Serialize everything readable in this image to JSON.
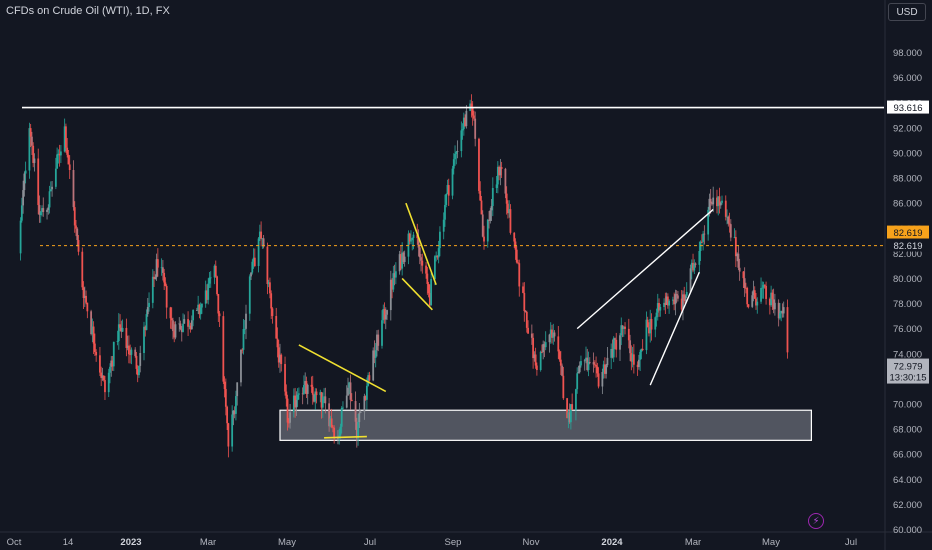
{
  "header": {
    "title": "CFDs on Crude Oil (WTI), 1D, FX",
    "currency_button": "USD"
  },
  "colors": {
    "background": "#131722",
    "up": "#26a69a",
    "down": "#ef5350",
    "up_faded": "#8b8f96",
    "grid_text": "#b2b5be",
    "level_line": "#ffffff",
    "dashed_line": "#f7a21b",
    "yellow_drawing": "#f0e030",
    "white_drawing": "#ffffff",
    "zone_fill": "#5d606b"
  },
  "chart_data": {
    "type": "candlestick",
    "symbol": "CFDs on Crude Oil (WTI)",
    "interval": "1D",
    "ylim": [
      59,
      99
    ],
    "y_ticks": [
      "60.000",
      "62.000",
      "64.000",
      "66.000",
      "68.000",
      "70.000",
      "72.000",
      "74.000",
      "76.000",
      "78.000",
      "80.000",
      "82.000",
      "84.000",
      "86.000",
      "88.000",
      "90.000",
      "92.000",
      "94.000",
      "96.000",
      "98.000"
    ],
    "x_ticks": [
      "Oct",
      "14",
      "2023",
      "Mar",
      "May",
      "Jul",
      "Sep",
      "Nov",
      "2024",
      "Mar",
      "May",
      "Jul"
    ],
    "anchors": [
      [
        "2022-10-01",
        82.0
      ],
      [
        "2022-10-10",
        92.6
      ],
      [
        "2022-10-18",
        85.0
      ],
      [
        "2022-10-25",
        86.0
      ],
      [
        "2022-11-07",
        92.0
      ],
      [
        "2022-11-20",
        80.0
      ],
      [
        "2022-12-09",
        71.0
      ],
      [
        "2022-12-20",
        76.0
      ],
      [
        "2023-01-04",
        73.0
      ],
      [
        "2023-01-20",
        81.5
      ],
      [
        "2023-02-01",
        76.0
      ],
      [
        "2023-02-20",
        77.0
      ],
      [
        "2023-03-07",
        80.5
      ],
      [
        "2023-03-17",
        66.7
      ],
      [
        "2023-03-22",
        70.0
      ],
      [
        "2023-04-03",
        80.0
      ],
      [
        "2023-04-12",
        83.5
      ],
      [
        "2023-05-04",
        68.3
      ],
      [
        "2023-05-12",
        71.5
      ],
      [
        "2023-06-01",
        70.0
      ],
      [
        "2023-06-12",
        67.3
      ],
      [
        "2023-06-20",
        72.0
      ],
      [
        "2023-06-27",
        68.0
      ],
      [
        "2023-07-06",
        72.0
      ],
      [
        "2023-07-25",
        79.6
      ],
      [
        "2023-08-10",
        84.0
      ],
      [
        "2023-08-24",
        78.6
      ],
      [
        "2023-09-05",
        86.0
      ],
      [
        "2023-09-18",
        92.0
      ],
      [
        "2023-09-27",
        93.6
      ],
      [
        "2023-10-06",
        82.8
      ],
      [
        "2023-10-12",
        86.0
      ],
      [
        "2023-10-19",
        89.2
      ],
      [
        "2023-11-01",
        81.0
      ],
      [
        "2023-11-16",
        73.0
      ],
      [
        "2023-11-30",
        76.0
      ],
      [
        "2023-12-12",
        68.8
      ],
      [
        "2023-12-22",
        73.6
      ],
      [
        "2024-01-05",
        72.0
      ],
      [
        "2024-01-24",
        76.0
      ],
      [
        "2024-02-05",
        72.5
      ],
      [
        "2024-02-12",
        76.0
      ],
      [
        "2024-03-01",
        78.5
      ],
      [
        "2024-03-12",
        78.0
      ],
      [
        "2024-04-05",
        86.8
      ],
      [
        "2024-04-12",
        85.6
      ],
      [
        "2024-04-24",
        82.0
      ],
      [
        "2024-05-03",
        78.0
      ],
      [
        "2024-05-13",
        79.0
      ],
      [
        "2024-05-22",
        78.0
      ],
      [
        "2024-05-31",
        77.0
      ],
      [
        "2024-06-03",
        74.5
      ],
      [
        "2024-06-04",
        72.98
      ]
    ],
    "last_price": "72.979",
    "countdown": "13:30:15",
    "levels": [
      {
        "value": 93.616,
        "label": "93.616",
        "style": "solid",
        "color": "#ffffff"
      },
      {
        "value": 82.619,
        "label": "82.619",
        "style": "dashed",
        "color": "#f7a21b"
      }
    ],
    "price_labels": [
      {
        "value": 82.619,
        "label": "82.619",
        "bg": "#f7a21b",
        "fg": "#131722"
      },
      {
        "value": 82.619,
        "label": "82.619",
        "bg": "#131722",
        "fg": "#d1d4dc"
      }
    ],
    "annotations": {
      "support_zone": {
        "x1": "2023-04-27",
        "x2": "2024-06-22",
        "y1": 69.5,
        "y2": 67.1
      },
      "yellow_lines": [
        [
          [
            "2023-05-12",
            74.7
          ],
          [
            "2023-07-20",
            71.0
          ]
        ],
        [
          [
            "2023-06-01",
            67.3
          ],
          [
            "2023-07-05",
            67.4
          ]
        ],
        [
          [
            "2023-08-05",
            86.0
          ],
          [
            "2023-08-29",
            79.5
          ]
        ],
        [
          [
            "2023-08-02",
            80.0
          ],
          [
            "2023-08-26",
            77.5
          ]
        ]
      ],
      "white_lines": [
        [
          [
            "2023-12-19",
            76.0
          ],
          [
            "2024-04-05",
            85.5
          ]
        ],
        [
          [
            "2024-02-15",
            71.5
          ],
          [
            "2024-03-25",
            80.5
          ]
        ]
      ]
    }
  }
}
